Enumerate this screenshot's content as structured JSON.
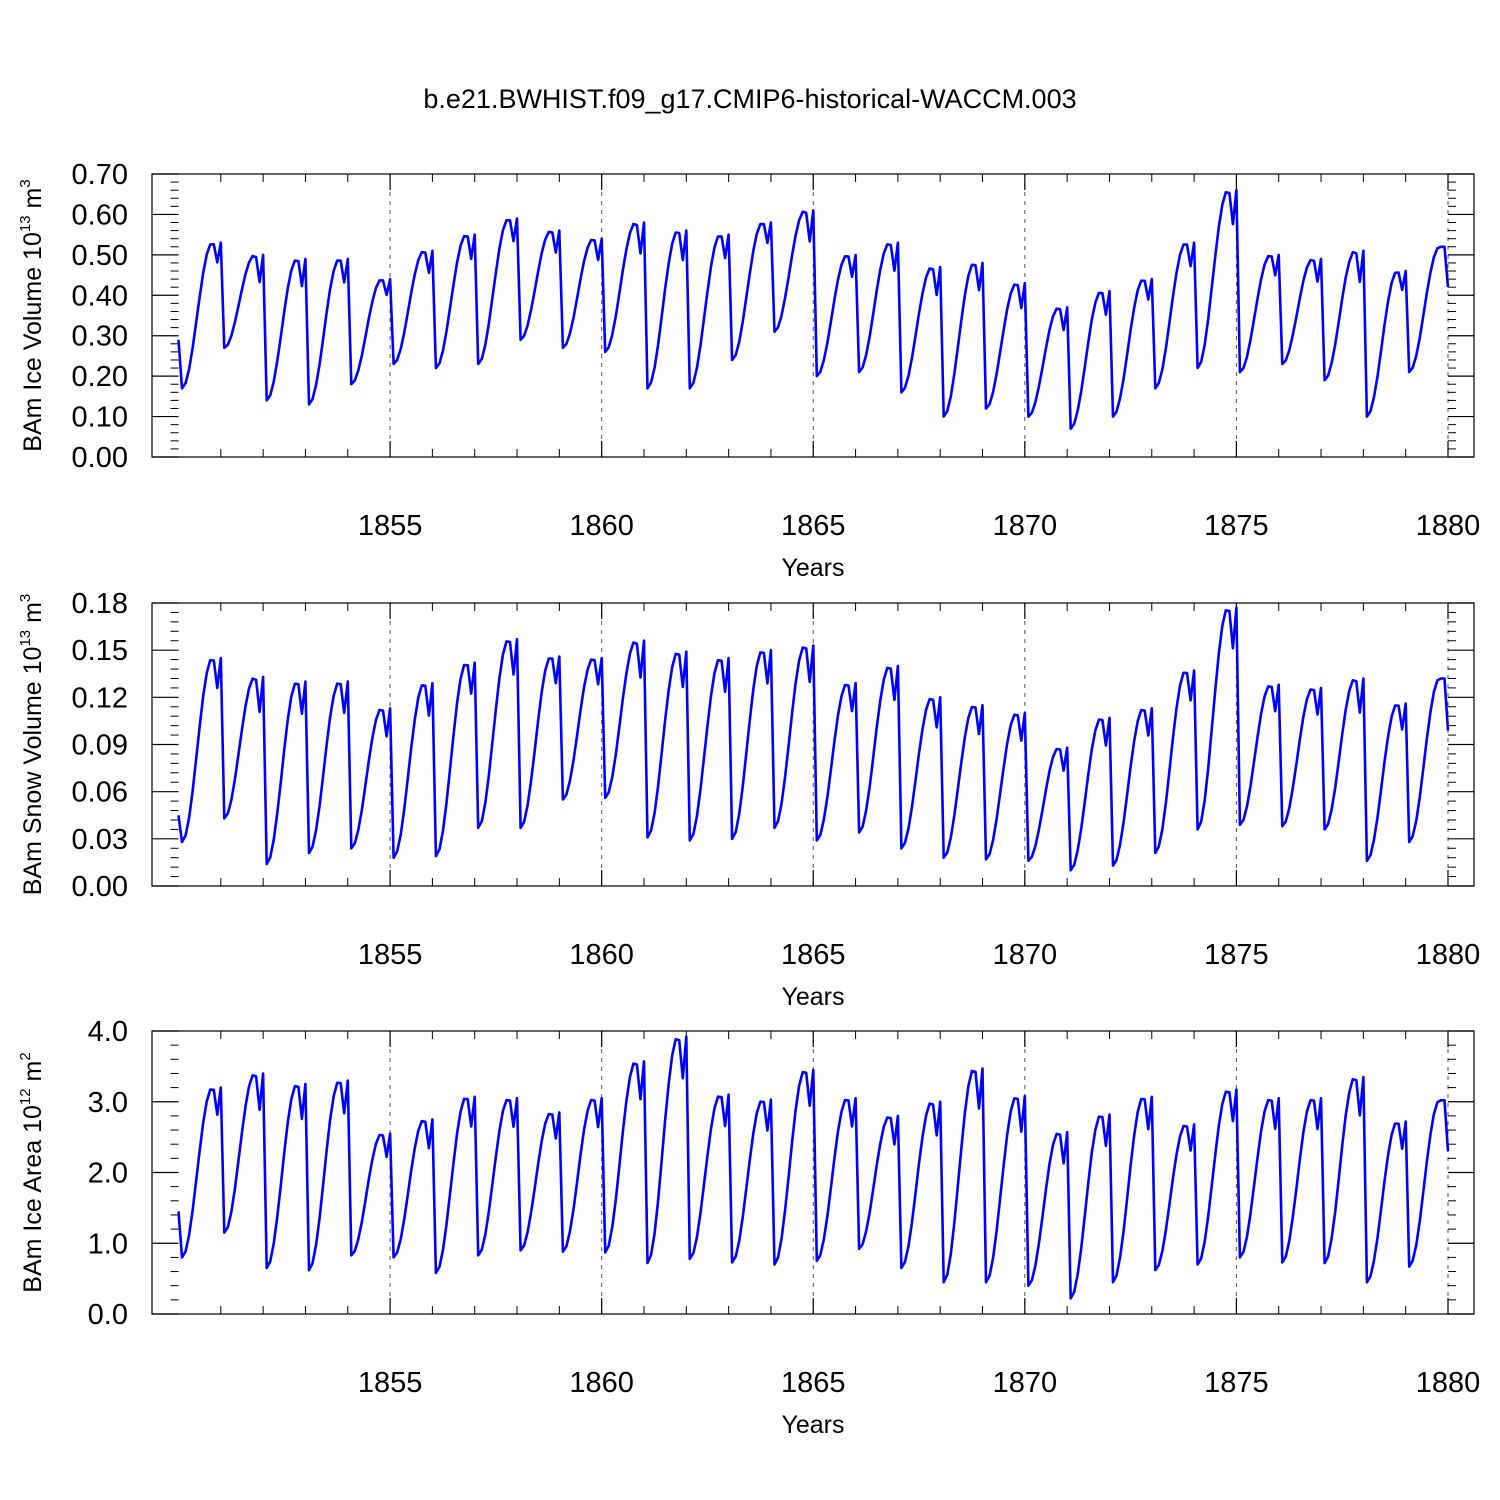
{
  "title": "b.e21.BWHIST.f09_g17.CMIP6-historical-WACCM.003",
  "line_color": "#0000ff",
  "chart_data": [
    {
      "type": "line",
      "id": "ice_volume",
      "ylabel": "BAm Ice Volume",
      "yunit_base": "10",
      "yunit_exp": "13",
      "yunit_symbol": "m",
      "yunit_symbol_exp": "3",
      "xlabel": "Years",
      "xlim": [
        1850,
        1880
      ],
      "ylim": [
        0,
        0.7
      ],
      "x_ticks": [
        1855,
        1860,
        1865,
        1870,
        1875,
        1880
      ],
      "x_tick_labels": [
        "1855",
        "1860",
        "1865",
        "1870",
        "1875",
        "1880"
      ],
      "y_ticks": [
        0,
        0.1,
        0.2,
        0.3,
        0.4,
        0.5,
        0.6,
        0.7
      ],
      "y_tick_labels": [
        "0.00",
        "0.10",
        "0.20",
        "0.30",
        "0.40",
        "0.50",
        "0.60",
        "0.70"
      ],
      "annual_max": [
        0.53,
        0.5,
        0.49,
        0.49,
        0.44,
        0.51,
        0.55,
        0.59,
        0.56,
        0.54,
        0.58,
        0.56,
        0.55,
        0.58,
        0.61,
        0.5,
        0.53,
        0.47,
        0.48,
        0.43,
        0.37,
        0.41,
        0.44,
        0.53,
        0.66,
        0.5,
        0.49,
        0.51,
        0.46,
        0.52
      ],
      "annual_min": [
        0.17,
        0.27,
        0.14,
        0.13,
        0.18,
        0.23,
        0.22,
        0.23,
        0.29,
        0.27,
        0.26,
        0.17,
        0.17,
        0.24,
        0.31,
        0.2,
        0.21,
        0.16,
        0.1,
        0.12,
        0.1,
        0.07,
        0.1,
        0.17,
        0.22,
        0.21,
        0.23,
        0.19,
        0.1,
        0.21
      ],
      "start_value": 0.29,
      "end_value": 0.42
    },
    {
      "type": "line",
      "id": "snow_volume",
      "ylabel": "BAm Snow Volume",
      "yunit_base": "10",
      "yunit_exp": "13",
      "yunit_symbol": "m",
      "yunit_symbol_exp": "3",
      "xlabel": "Years",
      "xlim": [
        1850,
        1880
      ],
      "ylim": [
        0,
        0.18
      ],
      "x_ticks": [
        1855,
        1860,
        1865,
        1870,
        1875,
        1880
      ],
      "x_tick_labels": [
        "1855",
        "1860",
        "1865",
        "1870",
        "1875",
        "1880"
      ],
      "y_ticks": [
        0,
        0.03,
        0.06,
        0.09,
        0.12,
        0.15,
        0.18
      ],
      "y_tick_labels": [
        "0.00",
        "0.03",
        "0.06",
        "0.09",
        "0.12",
        "0.15",
        "0.18"
      ],
      "annual_max": [
        0.145,
        0.133,
        0.13,
        0.13,
        0.113,
        0.129,
        0.142,
        0.157,
        0.146,
        0.145,
        0.156,
        0.149,
        0.145,
        0.15,
        0.153,
        0.129,
        0.14,
        0.12,
        0.115,
        0.11,
        0.088,
        0.107,
        0.113,
        0.137,
        0.177,
        0.128,
        0.126,
        0.132,
        0.116,
        0.132
      ],
      "annual_min": [
        0.028,
        0.043,
        0.014,
        0.021,
        0.024,
        0.018,
        0.019,
        0.037,
        0.037,
        0.055,
        0.056,
        0.031,
        0.029,
        0.03,
        0.037,
        0.029,
        0.034,
        0.024,
        0.018,
        0.017,
        0.016,
        0.01,
        0.013,
        0.021,
        0.036,
        0.039,
        0.038,
        0.036,
        0.016,
        0.028
      ],
      "start_value": 0.045,
      "end_value": 0.099
    },
    {
      "type": "line",
      "id": "ice_area",
      "ylabel": "BAm Ice Area",
      "yunit_base": "10",
      "yunit_exp": "12",
      "yunit_symbol": "m",
      "yunit_symbol_exp": "2",
      "xlabel": "Years",
      "xlim": [
        1850,
        1880
      ],
      "ylim": [
        0,
        4
      ],
      "x_ticks": [
        1855,
        1860,
        1865,
        1870,
        1875,
        1880
      ],
      "x_tick_labels": [
        "1855",
        "1860",
        "1865",
        "1870",
        "1875",
        "1880"
      ],
      "y_ticks": [
        0,
        1,
        2,
        3,
        4
      ],
      "y_tick_labels": [
        "0.0",
        "1.0",
        "2.0",
        "3.0",
        "4.0"
      ],
      "annual_max": [
        3.2,
        3.4,
        3.25,
        3.3,
        2.55,
        2.75,
        3.07,
        3.05,
        2.85,
        3.05,
        3.57,
        3.92,
        3.1,
        3.03,
        3.45,
        3.05,
        2.8,
        3.0,
        3.47,
        3.08,
        2.57,
        2.82,
        3.07,
        2.68,
        3.17,
        3.05,
        3.05,
        3.35,
        2.72,
        3.02
      ],
      "annual_min": [
        0.8,
        1.15,
        0.65,
        0.62,
        0.83,
        0.8,
        0.58,
        0.83,
        0.9,
        0.88,
        0.87,
        0.72,
        0.78,
        0.73,
        0.7,
        0.75,
        0.92,
        0.65,
        0.45,
        0.45,
        0.4,
        0.22,
        0.45,
        0.62,
        0.7,
        0.8,
        0.73,
        0.72,
        0.45,
        0.67
      ],
      "start_value": 1.45,
      "end_value": 2.3
    }
  ]
}
